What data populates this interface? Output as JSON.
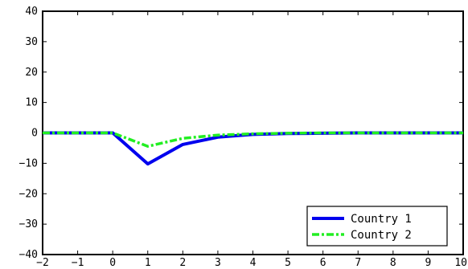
{
  "chart_data": {
    "type": "line",
    "title": "",
    "xlabel": "",
    "ylabel": "",
    "xlim": [
      -2,
      10
    ],
    "ylim": [
      -40,
      40
    ],
    "xticks": [
      -2,
      -1,
      0,
      1,
      2,
      3,
      4,
      5,
      6,
      7,
      8,
      9,
      10
    ],
    "yticks": [
      -40,
      -30,
      -20,
      -10,
      0,
      10,
      20,
      30,
      40
    ],
    "grid": false,
    "legend_position": "bottom-right",
    "x": [
      -2,
      -1.5,
      -1,
      -0.5,
      0,
      1,
      2,
      3,
      4,
      5,
      6,
      7,
      8,
      9,
      10
    ],
    "series": [
      {
        "name": "Country 1",
        "color": "#0000ee",
        "style": "solid",
        "values": [
          0,
          0,
          0,
          0,
          0,
          -10.2,
          -3.8,
          -1.4,
          -0.5,
          -0.2,
          -0.1,
          0,
          0,
          0,
          0
        ]
      },
      {
        "name": "Country 2",
        "color": "#22ee22",
        "style": "dash-dot",
        "values": [
          0,
          0,
          0,
          0,
          0,
          -4.4,
          -1.8,
          -0.7,
          -0.3,
          -0.1,
          0,
          0,
          0,
          0,
          0
        ]
      }
    ]
  }
}
